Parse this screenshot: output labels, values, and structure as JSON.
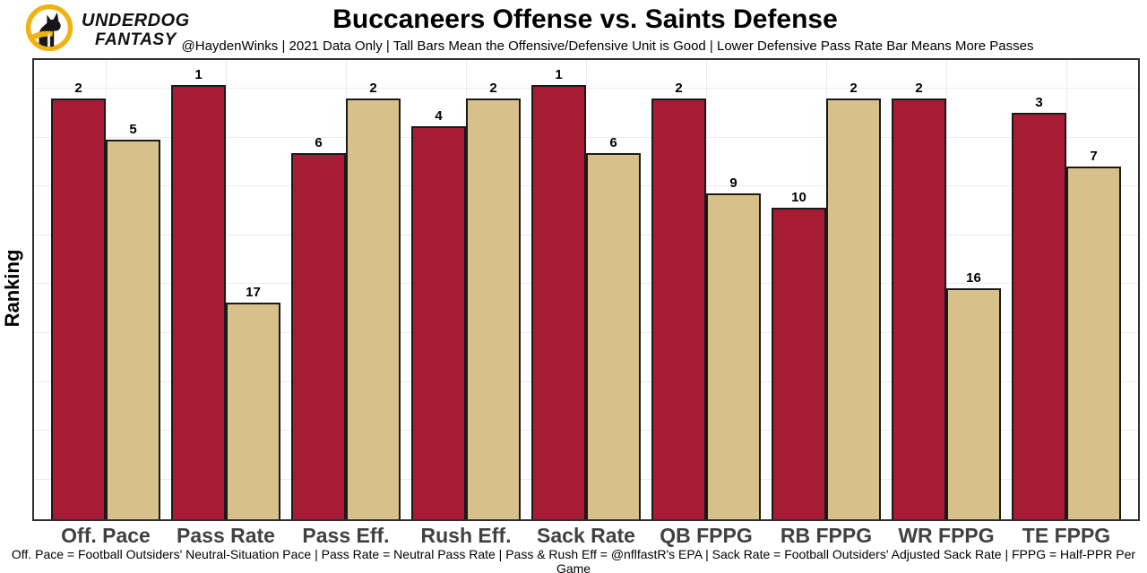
{
  "brand": {
    "line1": "UNDERDOG",
    "line2": "FANTASY",
    "ring_color": "#EFB211",
    "dog_color": "#161616"
  },
  "header": {
    "title": "Buccaneers Offense vs. Saints Defense",
    "subtitle": "@HaydenWinks | 2021 Data Only | Tall Bars Mean the Offensive/Defensive Unit is Good | Lower Defensive Pass Rate Bar Means More Passes"
  },
  "footer": {
    "text": "Off. Pace = Football Outsiders' Neutral-Situation Pace | Pass Rate = Neutral Pass Rate | Pass & Rush Eff = @nflfastR's EPA | Sack Rate = Football Outsiders' Adjusted Sack Rate | FPPG = Half-PPR Per Game"
  },
  "chart_data": {
    "type": "bar",
    "title": "Buccaneers Offense vs. Saints Defense",
    "subtitle": "@HaydenWinks | 2021 Data Only | Tall Bars Mean the Offensive/Defensive Unit is Good | Lower Defensive Pass Rate Bar Means More Passes",
    "ylabel": "Ranking",
    "xlabel": "",
    "categories": [
      "Off. Pace",
      "Pass Rate",
      "Pass Eff.",
      "Rush Eff.",
      "Sack Rate",
      "QB FPPG",
      "RB FPPG",
      "WR FPPG",
      "TE FPPG"
    ],
    "series": [
      {
        "name": "Buccaneers Offense",
        "color": "#A71C34",
        "ranks": [
          2,
          1,
          6,
          4,
          1,
          2,
          10,
          2,
          3
        ]
      },
      {
        "name": "Saints Defense",
        "color": "#D8C08A",
        "ranks": [
          5,
          17,
          2,
          2,
          6,
          9,
          2,
          16,
          7
        ]
      }
    ],
    "value_encoding": "rank shown as data label; 1 = best; bar height proportional to (33 - rank)",
    "ylim": [
      0,
      33
    ],
    "grid": true,
    "legend": "none"
  }
}
